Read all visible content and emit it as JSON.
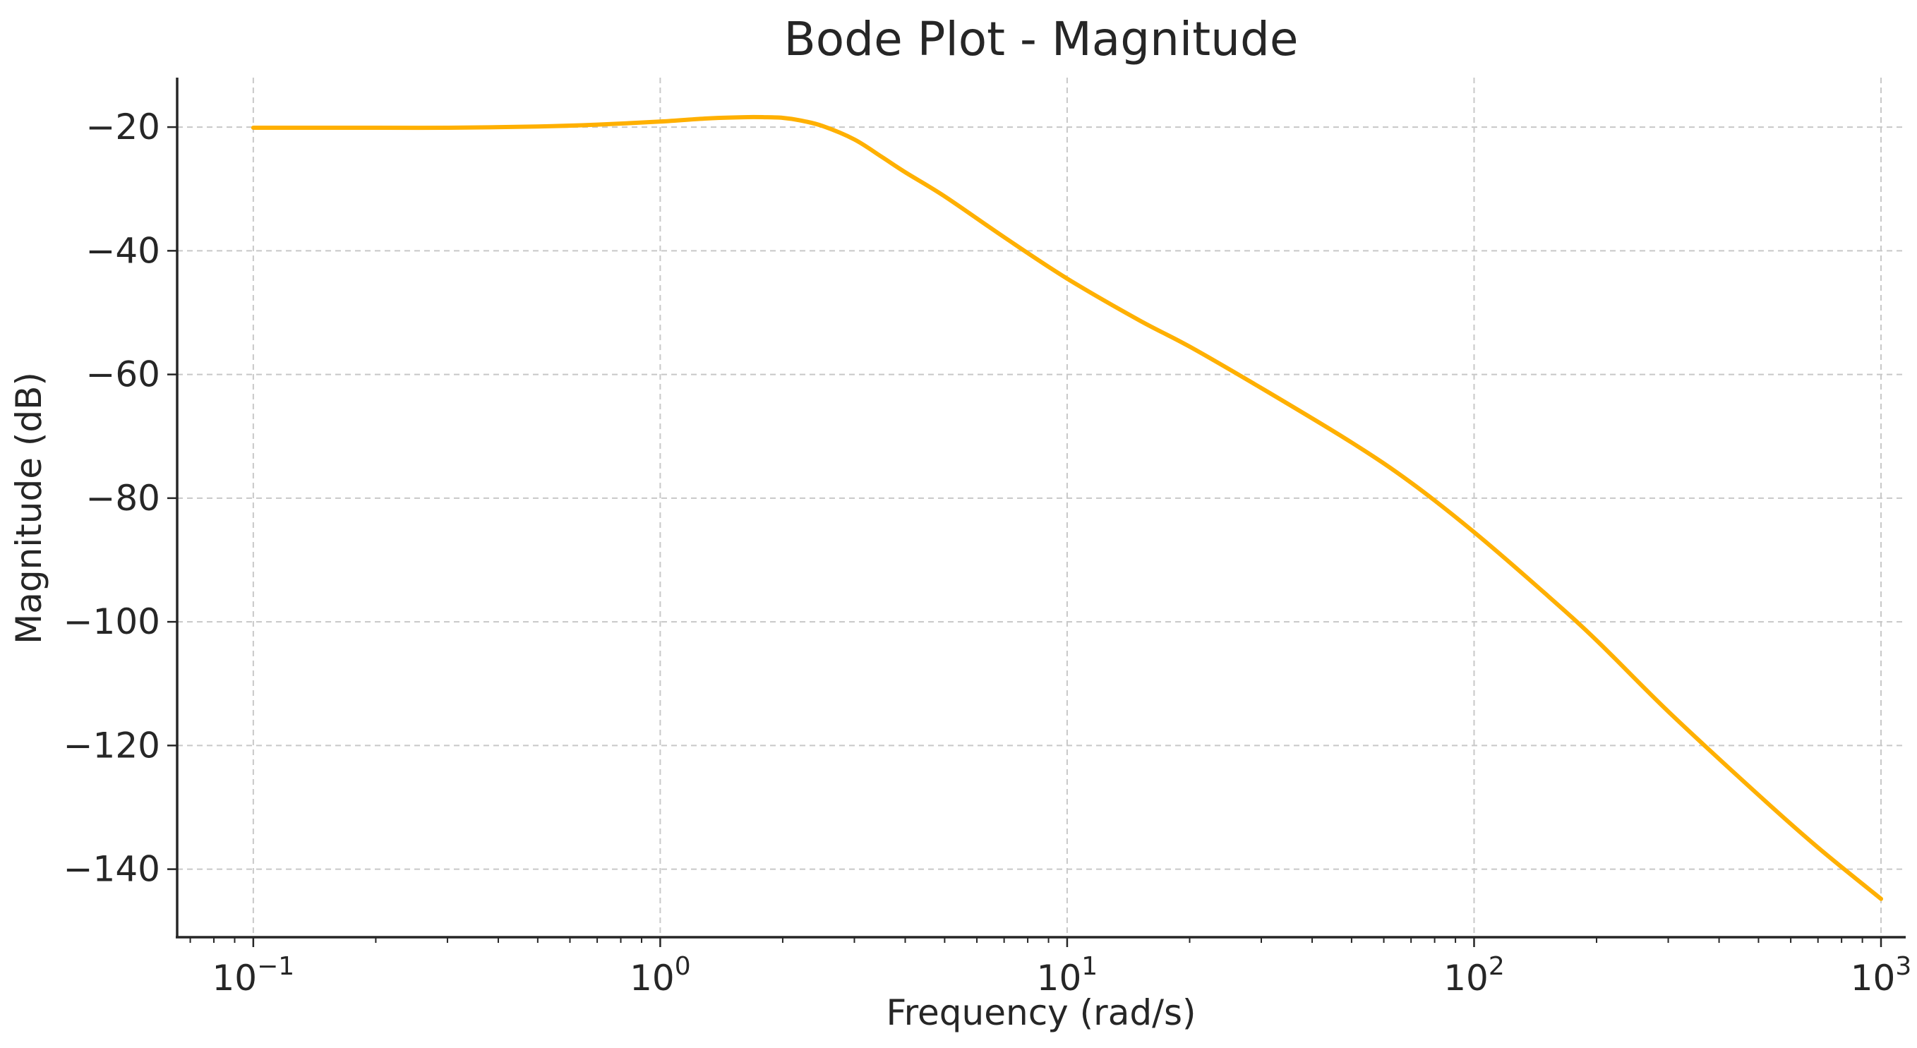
{
  "chart_data": {
    "type": "line",
    "title": "Bode Plot - Magnitude",
    "xlabel": "Frequency (rad/s)",
    "ylabel": "Magnitude (dB)",
    "x_scale": "log",
    "xlim": [
      0.065,
      1150
    ],
    "ylim": [
      -151,
      -12
    ],
    "x_ticks": [
      {
        "value": 0.1,
        "base": "10",
        "exp": "−1"
      },
      {
        "value": 1,
        "base": "10",
        "exp": "0"
      },
      {
        "value": 10,
        "base": "10",
        "exp": "1"
      },
      {
        "value": 100,
        "base": "10",
        "exp": "2"
      },
      {
        "value": 1000,
        "base": "10",
        "exp": "3"
      }
    ],
    "y_ticks": [
      {
        "value": -20,
        "label": "−20"
      },
      {
        "value": -40,
        "label": "−40"
      },
      {
        "value": -60,
        "label": "−60"
      },
      {
        "value": -80,
        "label": "−80"
      },
      {
        "value": -100,
        "label": "−100"
      },
      {
        "value": -120,
        "label": "−120"
      },
      {
        "value": -140,
        "label": "−140"
      }
    ],
    "grid": true,
    "series": [
      {
        "color": "#FFB000",
        "points": [
          [
            0.1,
            -20.1
          ],
          [
            0.2,
            -20.1
          ],
          [
            0.3,
            -20.1
          ],
          [
            0.5,
            -19.9
          ],
          [
            0.7,
            -19.6
          ],
          [
            1.0,
            -19.1
          ],
          [
            1.3,
            -18.6
          ],
          [
            1.6,
            -18.4
          ],
          [
            1.8,
            -18.4
          ],
          [
            2.0,
            -18.5
          ],
          [
            2.2,
            -18.9
          ],
          [
            2.5,
            -19.8
          ],
          [
            3.0,
            -22.0
          ],
          [
            3.5,
            -24.8
          ],
          [
            4.0,
            -27.3
          ],
          [
            5.0,
            -31.2
          ],
          [
            7.0,
            -37.8
          ],
          [
            10.0,
            -44.5
          ],
          [
            15.0,
            -51.2
          ],
          [
            20.0,
            -55.5
          ],
          [
            30.0,
            -62.2
          ],
          [
            50.0,
            -71.0
          ],
          [
            70.0,
            -77.5
          ],
          [
            100.0,
            -85.5
          ],
          [
            150.0,
            -95.5
          ],
          [
            200.0,
            -103.0
          ],
          [
            300.0,
            -114.5
          ],
          [
            500.0,
            -128.0
          ],
          [
            700.0,
            -136.5
          ],
          [
            1000.0,
            -144.8
          ]
        ]
      }
    ]
  }
}
